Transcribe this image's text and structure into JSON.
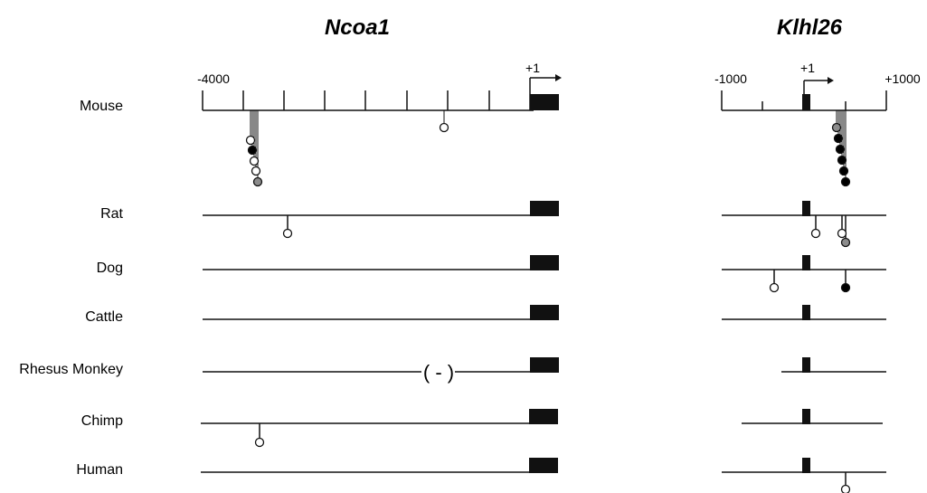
{
  "genes": [
    {
      "title": "Ncoa1",
      "axis": {
        "start_label": "-4000",
        "tss_label": "+1"
      }
    },
    {
      "title": "Klhl26",
      "axis": {
        "start_label": "-1000",
        "tss_label": "+1",
        "end_label": "+1000"
      }
    }
  ],
  "species": [
    "Mouse",
    "Rat",
    "Dog",
    "Cattle",
    "Rhesus Monkey",
    "Chimp",
    "Human"
  ],
  "gap_marker": "( - )",
  "colors": {
    "line": "#111111",
    "exon": "#111111",
    "site_open": "#ffffff",
    "site_filled": "#000000",
    "site_grey": "#8c8c8c"
  }
}
